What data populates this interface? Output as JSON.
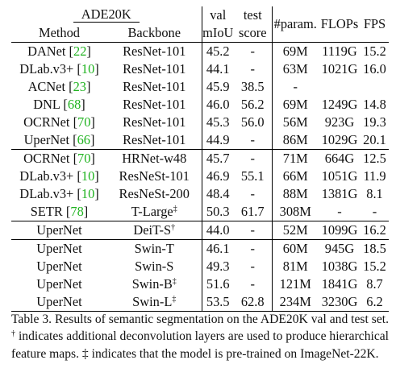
{
  "header": {
    "dataset": "ADE20K",
    "method": "Method",
    "backbone": "Backbone",
    "val_line1": "val",
    "val_line2": "mIoU",
    "test_line1": "test",
    "test_line2": "score",
    "params": "#param.",
    "flops": "FLOPs",
    "fps": "FPS"
  },
  "groups": [
    [
      {
        "method": "DANet",
        "cite": "22",
        "backbone": "ResNet-101",
        "backbone_mark": "",
        "val": "45.2",
        "test": "-",
        "params": "69M",
        "flops": "1119G",
        "fps": "15.2"
      },
      {
        "method": "DLab.v3+",
        "cite": "10",
        "backbone": "ResNet-101",
        "backbone_mark": "",
        "val": "44.1",
        "test": "-",
        "params": "63M",
        "flops": "1021G",
        "fps": "16.0"
      },
      {
        "method": "ACNet",
        "cite": "23",
        "backbone": "ResNet-101",
        "backbone_mark": "",
        "val": "45.9",
        "test": "38.5",
        "params": "-",
        "flops": "",
        "fps": ""
      },
      {
        "method": "DNL",
        "cite": "68",
        "backbone": "ResNet-101",
        "backbone_mark": "",
        "val": "46.0",
        "test": "56.2",
        "params": "69M",
        "flops": "1249G",
        "fps": "14.8"
      },
      {
        "method": "OCRNet",
        "cite": "70",
        "backbone": "ResNet-101",
        "backbone_mark": "",
        "val": "45.3",
        "test": "56.0",
        "params": "56M",
        "flops": "923G",
        "fps": "19.3"
      },
      {
        "method": "UperNet",
        "cite": "66",
        "backbone": "ResNet-101",
        "backbone_mark": "",
        "val": "44.9",
        "test": "-",
        "params": "86M",
        "flops": "1029G",
        "fps": "20.1"
      }
    ],
    [
      {
        "method": "OCRNet",
        "cite": "70",
        "backbone": "HRNet-w48",
        "backbone_mark": "",
        "val": "45.7",
        "test": "-",
        "params": "71M",
        "flops": "664G",
        "fps": "12.5"
      },
      {
        "method": "DLab.v3+",
        "cite": "10",
        "backbone": "ResNeSt-101",
        "backbone_mark": "",
        "val": "46.9",
        "test": "55.1",
        "params": "66M",
        "flops": "1051G",
        "fps": "11.9"
      },
      {
        "method": "DLab.v3+",
        "cite": "10",
        "backbone": "ResNeSt-200",
        "backbone_mark": "",
        "val": "48.4",
        "test": "-",
        "params": "88M",
        "flops": "1381G",
        "fps": "8.1"
      },
      {
        "method": "SETR",
        "cite": "78",
        "backbone": "T-Large",
        "backbone_mark": "‡",
        "val": "50.3",
        "test": "61.7",
        "params": "308M",
        "flops": "-",
        "fps": "-"
      }
    ],
    [
      {
        "method": "UperNet",
        "cite": "",
        "backbone": "DeiT-S",
        "backbone_mark": "†",
        "val": "44.0",
        "test": "-",
        "params": "52M",
        "flops": "1099G",
        "fps": "16.2"
      }
    ],
    [
      {
        "method": "UperNet",
        "cite": "",
        "backbone": "Swin-T",
        "backbone_mark": "",
        "val": "46.1",
        "test": "-",
        "params": "60M",
        "flops": "945G",
        "fps": "18.5"
      },
      {
        "method": "UperNet",
        "cite": "",
        "backbone": "Swin-S",
        "backbone_mark": "",
        "val": "49.3",
        "test": "-",
        "params": "81M",
        "flops": "1038G",
        "fps": "15.2"
      },
      {
        "method": "UperNet",
        "cite": "",
        "backbone": "Swin-B",
        "backbone_mark": "‡",
        "val": "51.6",
        "test": "-",
        "params": "121M",
        "flops": "1841G",
        "fps": "8.7"
      },
      {
        "method": "UperNet",
        "cite": "",
        "backbone": "Swin-L",
        "backbone_mark": "‡",
        "val": "53.5",
        "test": "62.8",
        "params": "234M",
        "flops": "3230G",
        "fps": "6.2",
        "bold": [
          "val",
          "test"
        ]
      }
    ]
  ],
  "caption": {
    "lead": "Table 3. Results of semantic segmentation on the ADE20K val and test set.",
    "dagger": "†",
    "dagger_text": "indicates additional deconvolution layers are used to produce hierarchical feature maps.",
    "ddagger": "‡",
    "ddagger_text": "indicates that the model is pre-trained on ImageNet-22K."
  }
}
